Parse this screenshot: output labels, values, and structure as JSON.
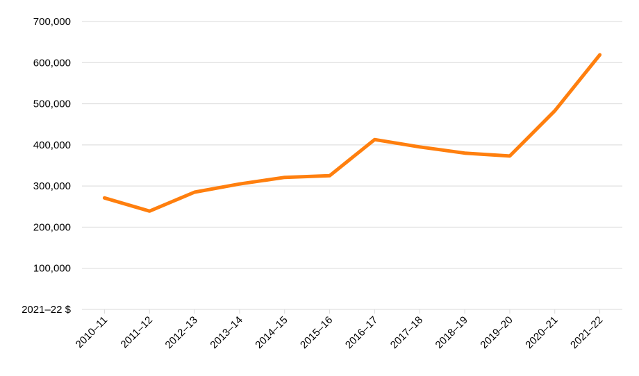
{
  "chart_data": {
    "type": "line",
    "title": "",
    "xlabel": "",
    "ylabel": "",
    "unit_label": "2021–22 $",
    "categories": [
      "2010–11",
      "2011–12",
      "2012–13",
      "2013–14",
      "2014–15",
      "2015–16",
      "2016–17",
      "2017–18",
      "2018–19",
      "2019–20",
      "2020–21",
      "2021–22"
    ],
    "series": [
      {
        "values": [
          271000,
          239000,
          285000,
          305000,
          321000,
          325000,
          413000,
          395000,
          380000,
          373000,
          483000,
          619000
        ],
        "color": "#ff7f0e"
      }
    ],
    "y_ticks": [
      100000,
      200000,
      300000,
      400000,
      500000,
      600000,
      700000
    ],
    "y_tick_labels": [
      "100,000",
      "200,000",
      "300,000",
      "400,000",
      "500,000",
      "600,000",
      "700,000"
    ],
    "ylim": [
      0,
      700000
    ],
    "grid": true,
    "legend": "none"
  }
}
